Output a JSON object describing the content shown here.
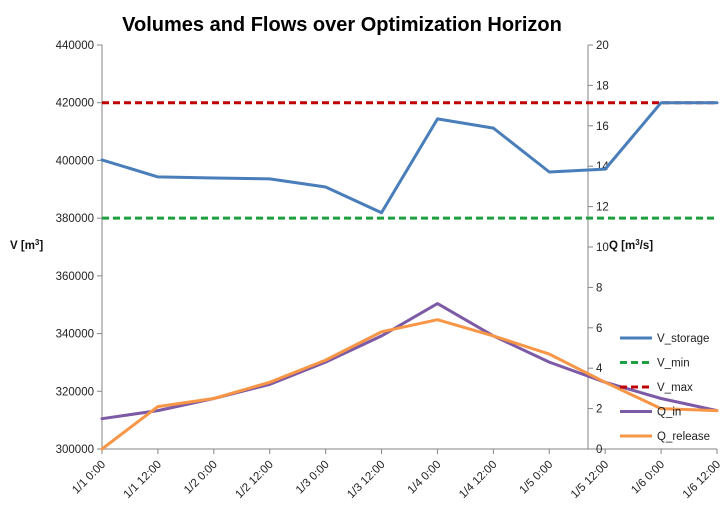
{
  "chart_data": {
    "type": "line",
    "title": "Volumes and Flows over Optimization Horizon",
    "categories": [
      "1/1 0:00",
      "1/1 12:00",
      "1/2 0:00",
      "1/2 12:00",
      "1/3 0:00",
      "1/3 12:00",
      "1/4 0:00",
      "1/4 12:00",
      "1/5 0:00",
      "1/5 12:00",
      "1/6 0:00",
      "1/6 12:00"
    ],
    "y_left": {
      "label_main": "V [m",
      "label_sup": "3",
      "label_tail": "]",
      "min": 300000,
      "max": 440000,
      "step": 20000
    },
    "y_right": {
      "label_main": "Q [m",
      "label_sup": "3",
      "label_tail": "/s]",
      "min": 0,
      "max": 20,
      "step": 2
    },
    "grid": false,
    "legend_position": "right",
    "series": [
      {
        "name": "V_storage",
        "axis": "left",
        "color": "#4a7ebb",
        "dash": "solid",
        "values": [
          400200,
          394300,
          393900,
          393600,
          390800,
          381900,
          414400,
          411200,
          396000,
          397000,
          420000,
          420000
        ]
      },
      {
        "name": "V_min",
        "axis": "left",
        "color": "#1fa040",
        "dash": "dashed",
        "values": [
          380000,
          380000,
          380000,
          380000,
          380000,
          380000,
          380000,
          380000,
          380000,
          380000,
          380000,
          380000
        ]
      },
      {
        "name": "V_max",
        "axis": "left",
        "color": "#c00000",
        "dash": "dashed",
        "values": [
          420000,
          420000,
          420000,
          420000,
          420000,
          420000,
          420000,
          420000,
          420000,
          420000,
          420000,
          420000
        ]
      },
      {
        "name": "Q_in",
        "axis": "right",
        "color": "#7d5aa6",
        "dash": "solid",
        "values": [
          1.5,
          1.9,
          2.5,
          3.2,
          4.3,
          5.6,
          7.2,
          5.6,
          4.3,
          3.3,
          2.5,
          1.9
        ]
      },
      {
        "name": "Q_release",
        "axis": "right",
        "color": "#f79646",
        "dash": "solid",
        "values": [
          0,
          2.1,
          2.5,
          3.3,
          4.4,
          5.8,
          6.4,
          5.6,
          4.7,
          3.3,
          2.0,
          1.9
        ]
      }
    ]
  }
}
